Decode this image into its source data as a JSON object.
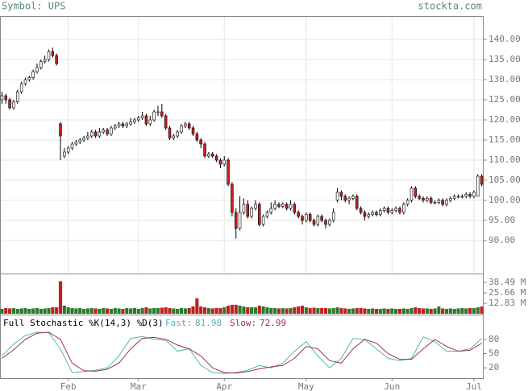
{
  "header": {
    "symbol": "Symbol: UPS",
    "site": "stockta.com"
  },
  "chart_data": [
    {
      "type": "candlestick",
      "xlim": [
        -0.5,
        123.5
      ],
      "ylim": [
        81.8,
        145.8
      ],
      "grid": true,
      "up_color": "#ffffff",
      "down_color": "#cc2222",
      "yticks": [
        {
          "value": 140,
          "label": "140.00"
        },
        {
          "value": 135,
          "label": "135.00"
        },
        {
          "value": 130,
          "label": "130.00"
        },
        {
          "value": 125,
          "label": "125.00"
        },
        {
          "value": 120,
          "label": "120.00"
        },
        {
          "value": 115,
          "label": "115.00"
        },
        {
          "value": 110,
          "label": "110.00"
        },
        {
          "value": 105,
          "label": "105.00"
        },
        {
          "value": 100,
          "label": "100.00"
        },
        {
          "value": 95,
          "label": "95.00"
        },
        {
          "value": 90,
          "label": "90.00"
        }
      ],
      "open": [
        125,
        126,
        125,
        123,
        124.5,
        127,
        129,
        130,
        130.5,
        132,
        133,
        134.5,
        135,
        137,
        136,
        119,
        111,
        112,
        113,
        114,
        114.5,
        115,
        115.5,
        116,
        117,
        116,
        117,
        117.5,
        116.5,
        118,
        118.5,
        119,
        118.5,
        119,
        119.5,
        120,
        120.5,
        121,
        119,
        120,
        122,
        122,
        121,
        118,
        115.5,
        116,
        117,
        118.5,
        119,
        118,
        116.5,
        115,
        114,
        111,
        111.5,
        111,
        110,
        109,
        110,
        104,
        97,
        93,
        97,
        99,
        96,
        98,
        99,
        94,
        96,
        97,
        98,
        99,
        98.5,
        99,
        98,
        99,
        97,
        96,
        95,
        96.5,
        95,
        94,
        96,
        95,
        94,
        95,
        100,
        102,
        101,
        100,
        100.5,
        101,
        98,
        97,
        96,
        96.5,
        97,
        96.5,
        97.5,
        98,
        97,
        97.5,
        98,
        97,
        99,
        100,
        103,
        101,
        100.5,
        100,
        100.5,
        99.5,
        99.5,
        100,
        99,
        100,
        100.5,
        101,
        101,
        101,
        101.5,
        101,
        101,
        106
      ],
      "high": [
        127,
        126.5,
        125.5,
        125,
        127.5,
        129.5,
        130.5,
        131,
        132.5,
        134,
        135,
        136,
        137.5,
        138,
        136.5,
        119.5,
        113,
        113.5,
        114.5,
        115,
        115.5,
        116,
        117,
        117.5,
        117.5,
        118,
        118,
        118,
        118.5,
        119,
        119.5,
        119.5,
        119.5,
        120.5,
        120.5,
        121,
        122,
        121.5,
        121,
        122.5,
        123.5,
        124,
        121.5,
        118.5,
        116.5,
        117.5,
        119,
        119.5,
        119.5,
        118.5,
        117,
        115.5,
        114.5,
        112,
        112,
        111.5,
        110.5,
        111,
        110.5,
        104.5,
        98,
        101,
        100.5,
        100,
        98.5,
        100,
        99.5,
        96.5,
        97.5,
        99.5,
        100,
        99.5,
        99.5,
        99.5,
        100,
        99.5,
        97.5,
        96.5,
        97,
        97,
        95.5,
        96.5,
        96.5,
        95.5,
        95.5,
        98,
        103,
        102.5,
        101.5,
        101,
        101.5,
        101.5,
        98.5,
        97.5,
        97,
        97.5,
        97.5,
        98,
        98.5,
        98.5,
        98,
        98.5,
        98.5,
        99.5,
        100.5,
        103.5,
        103.5,
        101.5,
        101,
        101,
        101,
        100,
        100.5,
        100.5,
        100.5,
        101,
        101.5,
        101.5,
        101.5,
        102,
        102,
        102.5,
        106.5,
        106.5
      ],
      "low": [
        124,
        124,
        122.5,
        122.5,
        124,
        126.5,
        128.5,
        129.5,
        130,
        131.5,
        132.5,
        134,
        134.5,
        135.5,
        133.5,
        110,
        110.5,
        111.5,
        112.5,
        113.5,
        114,
        114.5,
        115,
        115.5,
        115.5,
        115.5,
        116.5,
        116,
        116,
        117.5,
        118,
        118,
        118,
        118.5,
        119,
        119.5,
        120,
        118.5,
        118.5,
        119.5,
        121,
        120.5,
        117.5,
        115,
        115,
        115.5,
        116.5,
        118,
        117.5,
        116,
        114.5,
        113,
        110.5,
        110.5,
        110.5,
        109.5,
        108,
        108.5,
        103.5,
        96,
        90.5,
        92.5,
        96.5,
        95.5,
        95.5,
        97.5,
        93.5,
        93.5,
        95.5,
        96.5,
        97.5,
        98,
        98,
        97.5,
        97.5,
        96.5,
        95.5,
        94,
        94.5,
        94.5,
        93.5,
        93.5,
        94.5,
        93,
        93.5,
        94.5,
        99.5,
        100,
        99.5,
        99,
        100,
        97.5,
        96.5,
        95,
        95.5,
        96,
        96,
        96,
        97,
        96.5,
        96.5,
        97,
        96.5,
        96.5,
        98.5,
        99.5,
        100.5,
        100,
        99.5,
        99.5,
        99,
        99,
        99,
        98.5,
        98.5,
        99.5,
        100,
        100.5,
        100.5,
        100.5,
        100.5,
        100.5,
        101,
        103.5
      ],
      "close": [
        126,
        125,
        123,
        124.5,
        127,
        129,
        130,
        130.5,
        132,
        133,
        134.5,
        135,
        137,
        136,
        134,
        116,
        112,
        113,
        114,
        114.5,
        115,
        115.5,
        116,
        117,
        116,
        117,
        117.5,
        116.5,
        118,
        118.5,
        119,
        118.5,
        119,
        119.5,
        120,
        120.5,
        121,
        119,
        120,
        122,
        122,
        121,
        118,
        115.5,
        116,
        117,
        118.5,
        119,
        118,
        116.5,
        115,
        114,
        111,
        111.5,
        111,
        110,
        109,
        110,
        104,
        97,
        93,
        97,
        99,
        96,
        98,
        99,
        94,
        96,
        97,
        98,
        99,
        98.5,
        99,
        98,
        99,
        97,
        96,
        95,
        96.5,
        95,
        94,
        96,
        95,
        94,
        95,
        97,
        102,
        101,
        100,
        100.5,
        101,
        98,
        97,
        96,
        96.5,
        97,
        96.5,
        97.5,
        98,
        97,
        97.5,
        98,
        97,
        99,
        100,
        103,
        101,
        100.5,
        100,
        100.5,
        99.5,
        99.5,
        100,
        99,
        100,
        100.5,
        101,
        101,
        101,
        101.5,
        101,
        102,
        106,
        104
      ]
    },
    {
      "type": "bar",
      "xlim": [
        -0.5,
        123.5
      ],
      "ylim": [
        0,
        48.4
      ],
      "up_color": "#2a7a2a",
      "down_color": "#c02020",
      "yticks": [
        {
          "value": 38.49,
          "label": "38.49 M"
        },
        {
          "value": 25.66,
          "label": "25.66 M"
        },
        {
          "value": 12.83,
          "label": "12.83 M"
        }
      ],
      "values": [
        6,
        7,
        6.5,
        7,
        6,
        6.5,
        7,
        6,
        6.5,
        7,
        6,
        6.5,
        7,
        8,
        8,
        40,
        10,
        8,
        7,
        6.5,
        7,
        6,
        6.5,
        7,
        6.5,
        6,
        7,
        6.5,
        6,
        7,
        6.5,
        6,
        7,
        6.5,
        7,
        6,
        7,
        8,
        6.5,
        7,
        7,
        7.5,
        8,
        7,
        6.5,
        6,
        7,
        6.5,
        7,
        9,
        19,
        9,
        8,
        7,
        6.5,
        7,
        7,
        8,
        10,
        11,
        11,
        10,
        9,
        8,
        8,
        8,
        10,
        9,
        8,
        7,
        7,
        6.5,
        7,
        6.5,
        7,
        8,
        9,
        10,
        8,
        7,
        7.5,
        7,
        7,
        7,
        6.5,
        7,
        8,
        7,
        6.5,
        6,
        6.5,
        7,
        7,
        6.5,
        6,
        6.5,
        6,
        6,
        6.5,
        6,
        6.5,
        6,
        6,
        6.5,
        6,
        7,
        8,
        7,
        6.5,
        6.5,
        6,
        6.5,
        9,
        6.5,
        6,
        6.5,
        6,
        6.5,
        7,
        6.5,
        7,
        7,
        8,
        9
      ]
    },
    {
      "type": "line",
      "title": "Full Stochastic %K(14,3) %D(3)",
      "fast_label": "Fast:",
      "fast_value": 81.98,
      "slow_label": "Slow:",
      "slow_value": 72.99,
      "xlim": [
        -0.5,
        123.5
      ],
      "ylim": [
        0,
        100
      ],
      "yticks": [
        80,
        50,
        20
      ],
      "xticks": [
        {
          "value": 17,
          "label": "Feb"
        },
        {
          "value": 35,
          "label": "Mar"
        },
        {
          "value": 57,
          "label": "Apr"
        },
        {
          "value": 78,
          "label": "May"
        },
        {
          "value": 100,
          "label": "Jun"
        },
        {
          "value": 121,
          "label": "Jul"
        }
      ],
      "x": [
        0,
        3,
        6,
        9,
        12,
        15,
        18,
        21,
        24,
        27,
        30,
        33,
        36,
        39,
        42,
        45,
        48,
        51,
        54,
        57,
        60,
        63,
        66,
        69,
        72,
        75,
        78,
        81,
        84,
        87,
        90,
        93,
        96,
        99,
        102,
        105,
        108,
        111,
        114,
        117,
        120,
        123
      ],
      "series": [
        {
          "color": "#55b5b5",
          "values": [
            45,
            70,
            88,
            95,
            94,
            60,
            10,
            12,
            15,
            20,
            45,
            82,
            86,
            80,
            78,
            55,
            60,
            25,
            10,
            8,
            10,
            15,
            25,
            20,
            30,
            55,
            75,
            45,
            20,
            40,
            82,
            80,
            60,
            40,
            35,
            40,
            85,
            75,
            55,
            55,
            60,
            82
          ]
        },
        {
          "color": "#a03050",
          "values": [
            40,
            58,
            80,
            93,
            95,
            80,
            30,
            14,
            13,
            17,
            30,
            60,
            82,
            84,
            80,
            68,
            60,
            45,
            20,
            10,
            9,
            12,
            18,
            22,
            25,
            40,
            65,
            60,
            35,
            30,
            60,
            80,
            72,
            50,
            38,
            38,
            60,
            80,
            65,
            55,
            57,
            72
          ]
        }
      ]
    }
  ]
}
